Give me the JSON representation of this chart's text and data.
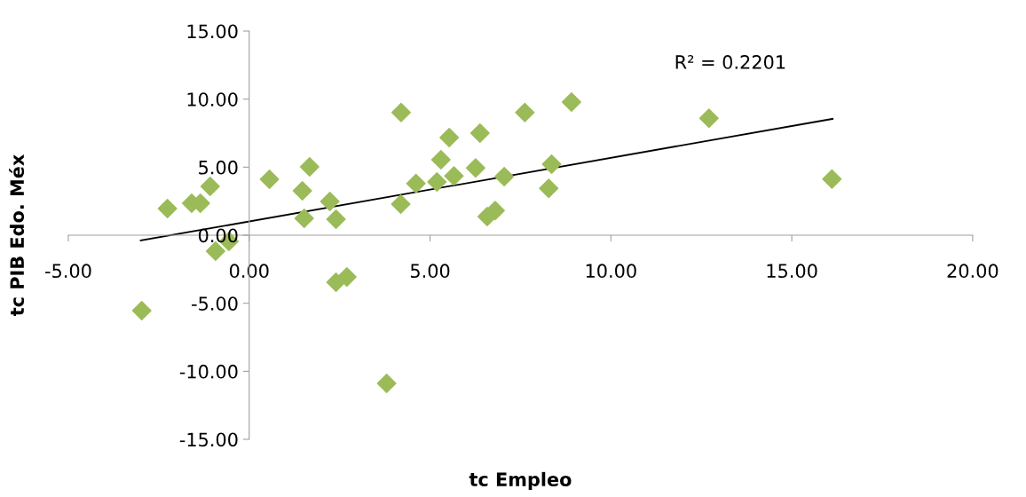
{
  "chart_data": {
    "type": "scatter",
    "xlabel": "tc Empleo",
    "ylabel": "tc PIB Edo. Méx",
    "xlim": [
      -5,
      20
    ],
    "ylim": [
      -15,
      15
    ],
    "xticks": [
      {
        "value": -5,
        "label": "-5.00"
      },
      {
        "value": 0,
        "label": "0.00"
      },
      {
        "value": 5,
        "label": "5.00"
      },
      {
        "value": 10,
        "label": "10.00"
      },
      {
        "value": 15,
        "label": "15.00"
      },
      {
        "value": 20,
        "label": "20.00"
      }
    ],
    "yticks": [
      {
        "value": -15,
        "label": "-15.00"
      },
      {
        "value": -10,
        "label": "-10.00"
      },
      {
        "value": -5,
        "label": "-5.00"
      },
      {
        "value": 0,
        "label": "0.00"
      },
      {
        "value": 5,
        "label": "5.00"
      },
      {
        "value": 10,
        "label": "10.00"
      },
      {
        "value": 15,
        "label": "15.00"
      }
    ],
    "grid": false,
    "marker": "diamond",
    "annotations": [
      "R² = 0.2201"
    ],
    "series": [
      {
        "color": "#9bbb59",
        "x": [
          -2.97,
          -2.26,
          -1.59,
          -1.35,
          -1.08,
          -0.93,
          -0.56,
          0.56,
          1.47,
          1.52,
          1.67,
          2.23,
          2.4,
          2.4,
          2.7,
          3.8,
          4.2,
          4.19,
          4.61,
          5.19,
          5.3,
          5.53,
          5.66,
          6.26,
          6.38,
          6.58,
          6.8,
          7.05,
          7.62,
          8.91,
          8.36,
          8.28,
          12.71,
          16.11
        ],
        "values": [
          -5.54,
          1.96,
          2.35,
          2.35,
          3.59,
          -1.17,
          -0.46,
          4.11,
          3.26,
          1.24,
          5.02,
          2.48,
          1.17,
          -3.46,
          -3.07,
          -10.89,
          9.02,
          2.28,
          3.8,
          3.91,
          5.54,
          7.18,
          4.35,
          4.94,
          7.5,
          1.37,
          1.81,
          4.31,
          9.02,
          9.78,
          5.22,
          3.44,
          8.59,
          4.13
        ]
      },
      {
        "type": "line",
        "color": "#000000",
        "marker": "none",
        "x": [
          -3.0,
          16.13
        ],
        "values": [
          -0.39,
          8.55
        ]
      }
    ]
  }
}
